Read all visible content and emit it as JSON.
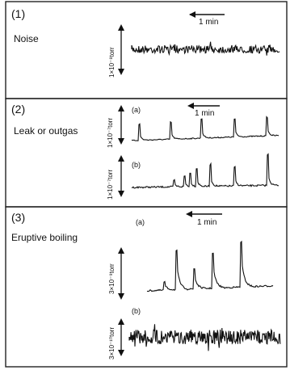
{
  "panels": [
    {
      "number": "(1)",
      "title": "Noise",
      "time_scale": "1 min",
      "traces": [
        {
          "sub": "",
          "scale_label": "1×10⁻⁸torr",
          "style": "noise"
        }
      ]
    },
    {
      "number": "(2)",
      "title": "Leak or outgas",
      "time_scale": "1 min",
      "traces": [
        {
          "sub": "(a)",
          "scale_label": "1×10⁻⁷torr",
          "style": "spikes"
        },
        {
          "sub": "(b)",
          "scale_label": "1×10⁻⁷torr",
          "style": "spikes"
        }
      ]
    },
    {
      "number": "(3)",
      "title": "Eruptive boiling",
      "time_scale": "1 min",
      "traces": [
        {
          "sub": "(a)",
          "scale_label": "3×10⁻⁹torr",
          "style": "bursts"
        },
        {
          "sub": "(b)",
          "scale_label": "3×10⁻¹⁰torr",
          "style": "noise"
        }
      ]
    }
  ]
}
